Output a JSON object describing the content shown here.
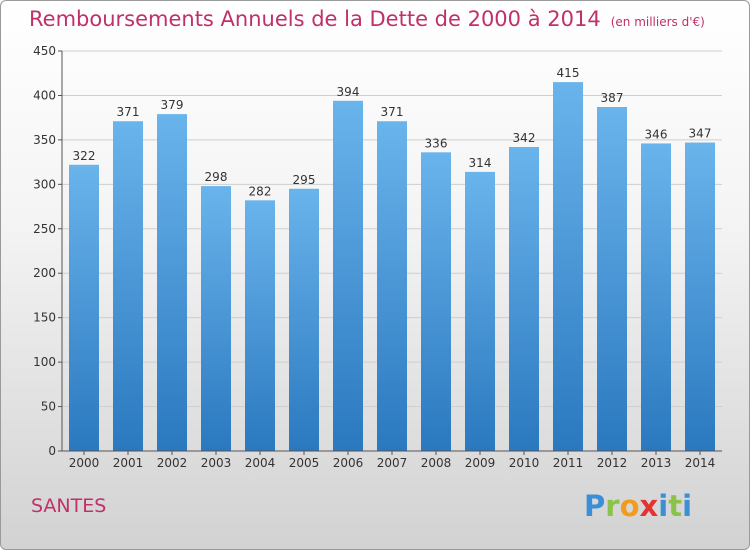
{
  "title": "Remboursements Annuels de la Dette de 2000 à 2014",
  "subtitle": "(en milliers d'€)",
  "city": "SANTES",
  "logo": {
    "letters": [
      "P",
      "r",
      "o",
      "x",
      "i",
      "t",
      "i"
    ],
    "colors": [
      "#3a8fd6",
      "#8bc34a",
      "#f29b1d",
      "#e3342f",
      "#3a8fd6",
      "#8bc34a",
      "#3a8fd6"
    ]
  },
  "colors": {
    "bar_top": "#6ab4ec",
    "bar_bottom": "#2a78bf",
    "title": "#c0306a"
  },
  "chart_data": {
    "type": "bar",
    "categories": [
      "2000",
      "2001",
      "2002",
      "2003",
      "2004",
      "2005",
      "2006",
      "2007",
      "2008",
      "2009",
      "2010",
      "2011",
      "2012",
      "2013",
      "2014"
    ],
    "values": [
      322,
      371,
      379,
      298,
      282,
      295,
      394,
      371,
      336,
      314,
      342,
      415,
      387,
      346,
      347
    ],
    "yticks": [
      0,
      50,
      100,
      150,
      200,
      250,
      300,
      350,
      400,
      450
    ],
    "ylim": [
      0,
      450
    ],
    "grid": true,
    "data_labels": true
  }
}
